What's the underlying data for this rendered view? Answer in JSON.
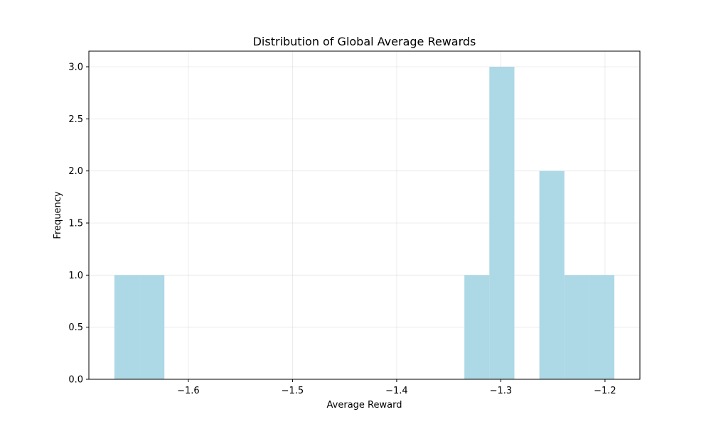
{
  "chart_data": {
    "type": "bar",
    "subtype": "histogram",
    "title": "Distribution of Global Average Rewards",
    "xlabel": "Average Reward",
    "ylabel": "Frequency",
    "xlim": [
      -1.6955,
      -1.1665
    ],
    "ylim": [
      0,
      3.15
    ],
    "x_ticks": [
      -1.6,
      -1.5,
      -1.4,
      -1.3,
      -1.2
    ],
    "x_tick_labels": [
      "−1.6",
      "−1.5",
      "−1.4",
      "−1.3",
      "−1.2"
    ],
    "y_ticks": [
      0,
      0.5,
      1.0,
      1.5,
      2.0,
      2.5,
      3.0
    ],
    "y_tick_labels": [
      "0.0",
      "0.5",
      "1.0",
      "1.5",
      "2.0",
      "2.5",
      "3.0"
    ],
    "grid": true,
    "bar_color": "#add8e6",
    "bins": [
      {
        "x0": -1.671,
        "x1": -1.647,
        "count": 1
      },
      {
        "x0": -1.647,
        "x1": -1.623,
        "count": 1
      },
      {
        "x0": -1.623,
        "x1": -1.599,
        "count": 0
      },
      {
        "x0": -1.599,
        "x1": -1.575,
        "count": 0
      },
      {
        "x0": -1.575,
        "x1": -1.551,
        "count": 0
      },
      {
        "x0": -1.551,
        "x1": -1.527,
        "count": 0
      },
      {
        "x0": -1.527,
        "x1": -1.503,
        "count": 0
      },
      {
        "x0": -1.503,
        "x1": -1.479,
        "count": 0
      },
      {
        "x0": -1.479,
        "x1": -1.455,
        "count": 0
      },
      {
        "x0": -1.455,
        "x1": -1.431,
        "count": 0
      },
      {
        "x0": -1.431,
        "x1": -1.407,
        "count": 0
      },
      {
        "x0": -1.407,
        "x1": -1.383,
        "count": 0
      },
      {
        "x0": -1.383,
        "x1": -1.359,
        "count": 0
      },
      {
        "x0": -1.359,
        "x1": -1.335,
        "count": 0
      },
      {
        "x0": -1.335,
        "x1": -1.311,
        "count": 1
      },
      {
        "x0": -1.311,
        "x1": -1.287,
        "count": 3
      },
      {
        "x0": -1.287,
        "x1": -1.263,
        "count": 0
      },
      {
        "x0": -1.263,
        "x1": -1.239,
        "count": 2
      },
      {
        "x0": -1.239,
        "x1": -1.215,
        "count": 1
      },
      {
        "x0": -1.215,
        "x1": -1.191,
        "count": 1
      }
    ]
  }
}
